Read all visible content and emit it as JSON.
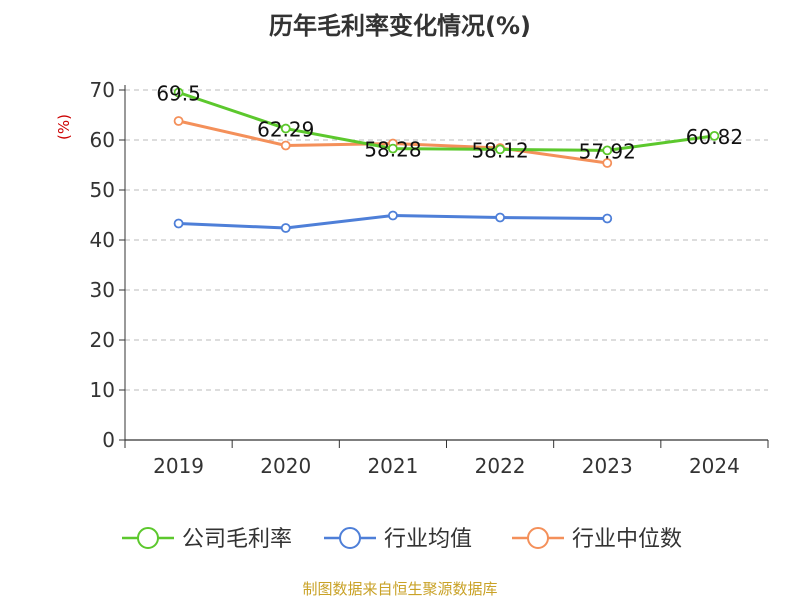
{
  "chart_data": {
    "type": "line",
    "title": "历年毛利率变化情况(%)",
    "ylabel": "(%)",
    "xlabel": "",
    "categories": [
      "2019",
      "2020",
      "2021",
      "2022",
      "2023",
      "2024"
    ],
    "ylim": [
      0,
      70
    ],
    "yticks": [
      0,
      10,
      20,
      30,
      40,
      50,
      60,
      70
    ],
    "grid": true,
    "legend_position": "bottom",
    "series": [
      {
        "name": "公司毛利率",
        "color": "#5cc82d",
        "values": [
          69.5,
          62.29,
          58.28,
          58.12,
          57.92,
          60.82
        ],
        "labels": [
          "69.5",
          "62.29",
          "58.28",
          "58.12",
          "57.92",
          "60.82"
        ]
      },
      {
        "name": "行业均值",
        "color": "#4e7fd8",
        "values": [
          43.3,
          42.4,
          44.9,
          44.5,
          44.3,
          null
        ]
      },
      {
        "name": "行业中位数",
        "color": "#f4905a",
        "values": [
          63.8,
          58.9,
          59.3,
          58.4,
          55.4,
          null
        ]
      }
    ],
    "source": "制图数据来自恒生聚源数据库"
  }
}
